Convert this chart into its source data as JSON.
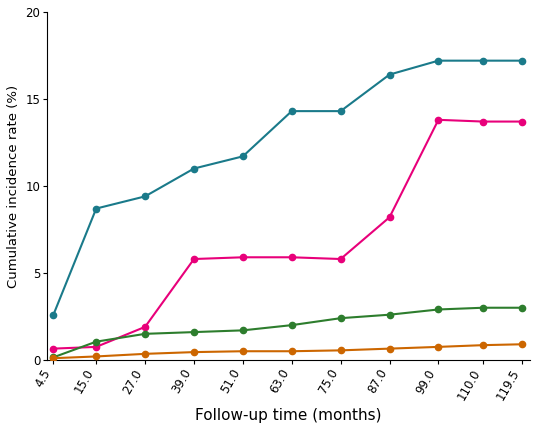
{
  "x": [
    4.5,
    15.0,
    27.0,
    39.0,
    51.0,
    63.0,
    75.0,
    87.0,
    99.0,
    110.0,
    119.5
  ],
  "series": [
    {
      "name": "teal",
      "color": "#1a7a8a",
      "values": [
        2.6,
        8.7,
        9.4,
        11.0,
        11.7,
        14.3,
        14.3,
        16.4,
        17.2,
        17.2,
        17.2
      ]
    },
    {
      "name": "pink",
      "color": "#e8007a",
      "values": [
        0.65,
        0.75,
        1.9,
        5.8,
        5.9,
        5.9,
        5.8,
        8.2,
        13.8,
        13.7,
        13.7
      ]
    },
    {
      "name": "green",
      "color": "#2d7d2d",
      "values": [
        0.15,
        1.05,
        1.5,
        1.6,
        1.7,
        2.0,
        2.4,
        2.6,
        2.9,
        3.0,
        3.0
      ]
    },
    {
      "name": "orange",
      "color": "#cc6600",
      "values": [
        0.1,
        0.2,
        0.35,
        0.45,
        0.5,
        0.5,
        0.55,
        0.65,
        0.75,
        0.85,
        0.9
      ]
    }
  ],
  "xlabel": "Follow-up time (months)",
  "ylabel": "Cumulative incidence rate (%)",
  "ylim": [
    0,
    20
  ],
  "yticks": [
    0,
    5,
    10,
    15,
    20
  ],
  "xticks": [
    4.5,
    15.0,
    27.0,
    39.0,
    51.0,
    63.0,
    75.0,
    87.0,
    99.0,
    110.0,
    119.5
  ],
  "xtick_labels": [
    "4.5",
    "15.0",
    "27.0",
    "39.0",
    "51.0",
    "63.0",
    "75.0",
    "87.0",
    "99.0",
    "110.0",
    "119.5"
  ],
  "marker": "o",
  "markersize": 4.5,
  "linewidth": 1.5,
  "xlabel_fontsize": 11,
  "ylabel_fontsize": 9.5,
  "tick_fontsize": 8.5,
  "background_color": "#ffffff"
}
